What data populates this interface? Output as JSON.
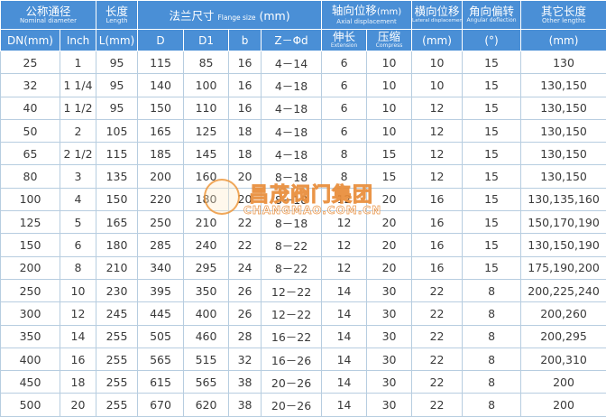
{
  "header": {
    "nominal": {
      "zh": "公称通径",
      "en": "Nominal diameter"
    },
    "length": {
      "zh": "长度",
      "en": "Length"
    },
    "flange": {
      "zh": "法兰尺寸",
      "en": "Flange size",
      "unit": "(mm)"
    },
    "axial": {
      "zh": "轴向位移",
      "unit": "(mm)",
      "en": "Axial displacement"
    },
    "lateral": {
      "zh": "横向位移",
      "en": "Lateral displacement"
    },
    "angular": {
      "zh": "角向偏转",
      "en": "Angular deflection"
    },
    "other": {
      "zh": "其它长度",
      "en": "Other lengths"
    },
    "sub": {
      "dn": "DN(mm)",
      "inch": "Inch",
      "l": "L(mm)",
      "d": "D",
      "d1": "D1",
      "b": "b",
      "z": "Z－Φd",
      "extension": {
        "zh": "伸长",
        "en": "Extension"
      },
      "compress": {
        "zh": "压缩",
        "en": "Compress"
      },
      "lateral_unit": "(mm)",
      "angular_unit": "(°)",
      "other_unit": "(mm)"
    }
  },
  "table": {
    "rows": [
      [
        25,
        "1",
        95,
        115,
        85,
        16,
        "4－14",
        6,
        10,
        10,
        15,
        "130"
      ],
      [
        32,
        "1 1/4",
        95,
        140,
        100,
        16,
        "4－18",
        6,
        10,
        10,
        15,
        "130,150"
      ],
      [
        40,
        "1 1/2",
        95,
        150,
        110,
        16,
        "4－18",
        6,
        10,
        12,
        15,
        "130,150"
      ],
      [
        50,
        "2",
        105,
        165,
        125,
        18,
        "4－18",
        6,
        10,
        12,
        15,
        "130,150"
      ],
      [
        65,
        "2 1/2",
        115,
        185,
        145,
        18,
        "4－18",
        8,
        15,
        12,
        15,
        "130,150"
      ],
      [
        80,
        "3",
        135,
        200,
        160,
        20,
        "8－18",
        8,
        15,
        12,
        15,
        "130,150"
      ],
      [
        100,
        "4",
        150,
        220,
        180,
        20,
        "8－18",
        12,
        20,
        16,
        15,
        "130,135,160"
      ],
      [
        125,
        "5",
        165,
        250,
        210,
        22,
        "8－18",
        12,
        20,
        16,
        15,
        "150,170,190"
      ],
      [
        150,
        "6",
        180,
        285,
        240,
        22,
        "8－22",
        12,
        20,
        16,
        15,
        "130,150,190"
      ],
      [
        200,
        "8",
        210,
        340,
        295,
        24,
        "8－22",
        12,
        20,
        16,
        15,
        "175,190,200"
      ],
      [
        250,
        "10",
        230,
        395,
        350,
        26,
        "12－22",
        14,
        30,
        22,
        8,
        "200,225,240"
      ],
      [
        300,
        "12",
        245,
        445,
        400,
        26,
        "12－22",
        14,
        30,
        22,
        8,
        "200,260"
      ],
      [
        350,
        "14",
        255,
        505,
        460,
        28,
        "16－22",
        14,
        30,
        22,
        8,
        "200,295"
      ],
      [
        400,
        "16",
        255,
        565,
        515,
        32,
        "16－26",
        14,
        30,
        22,
        8,
        "200,310"
      ],
      [
        450,
        "18",
        255,
        615,
        565,
        38,
        "20－26",
        14,
        30,
        22,
        8,
        "200"
      ],
      [
        500,
        "20",
        255,
        670,
        620,
        38,
        "20－26",
        14,
        30,
        22,
        8,
        "200"
      ]
    ]
  },
  "watermark": {
    "name": "昌茂阀门集团",
    "url": "CHANGMAO.COM.CN"
  }
}
